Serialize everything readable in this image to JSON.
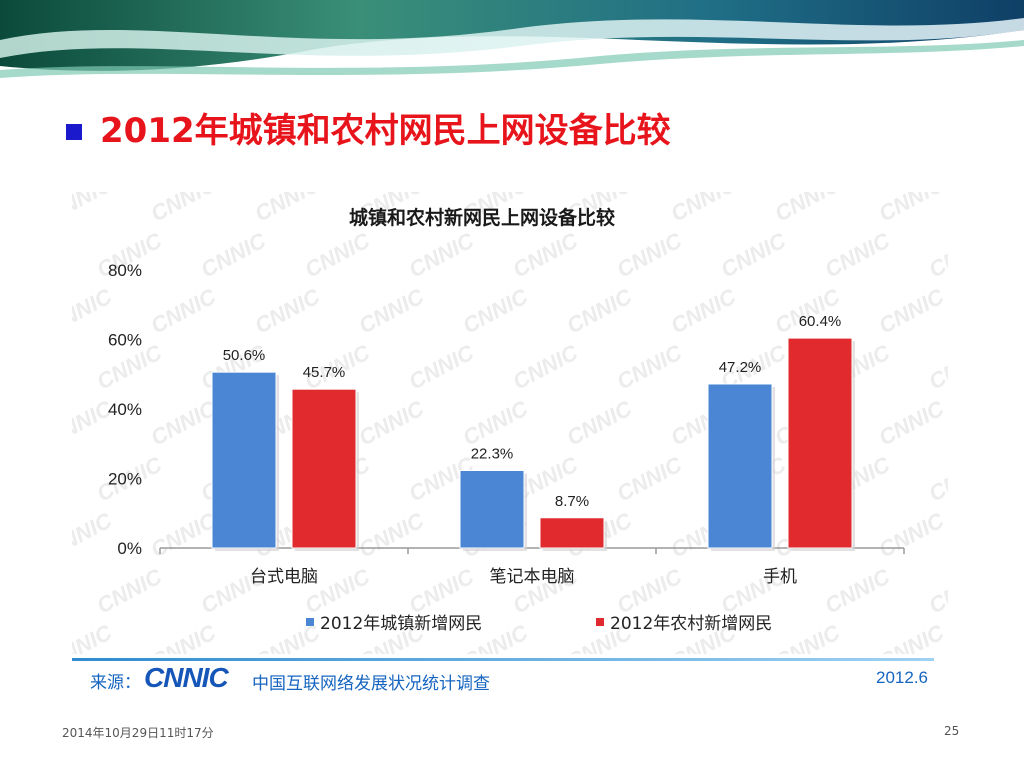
{
  "slide": {
    "title": "2012年城镇和农村网民上网设备比较",
    "footer_date": "2014年10月29日11时17分",
    "page_number": "25"
  },
  "source": {
    "label": "来源：",
    "logo_text": "CNNIC",
    "organization": "中国互联网络发展状况统计调查",
    "date": "2012.6"
  },
  "colors": {
    "title": "#e8141c",
    "bullet": "#1a1acc",
    "series_urban": "#4a86d4",
    "series_rural": "#e02a2e"
  },
  "chart_data": {
    "type": "bar",
    "title": "城镇和农村新网民上网设备比较",
    "categories": [
      "台式电脑",
      "笔记本电脑",
      "手机"
    ],
    "series": [
      {
        "name": "2012年城镇新增网民",
        "values": [
          50.6,
          22.3,
          47.2
        ],
        "labels": [
          "50.6%",
          "22.3%",
          "47.2%"
        ],
        "color": "#4a86d4"
      },
      {
        "name": "2012年农村新增网民",
        "values": [
          45.7,
          8.7,
          60.4
        ],
        "labels": [
          "45.7%",
          "8.7%",
          "60.4%"
        ],
        "color": "#e02a2e"
      }
    ],
    "y_ticks": [
      "0%",
      "20%",
      "40%",
      "60%",
      "80%"
    ],
    "ylim": [
      0,
      80
    ],
    "legend_position": "bottom",
    "grid": false
  }
}
